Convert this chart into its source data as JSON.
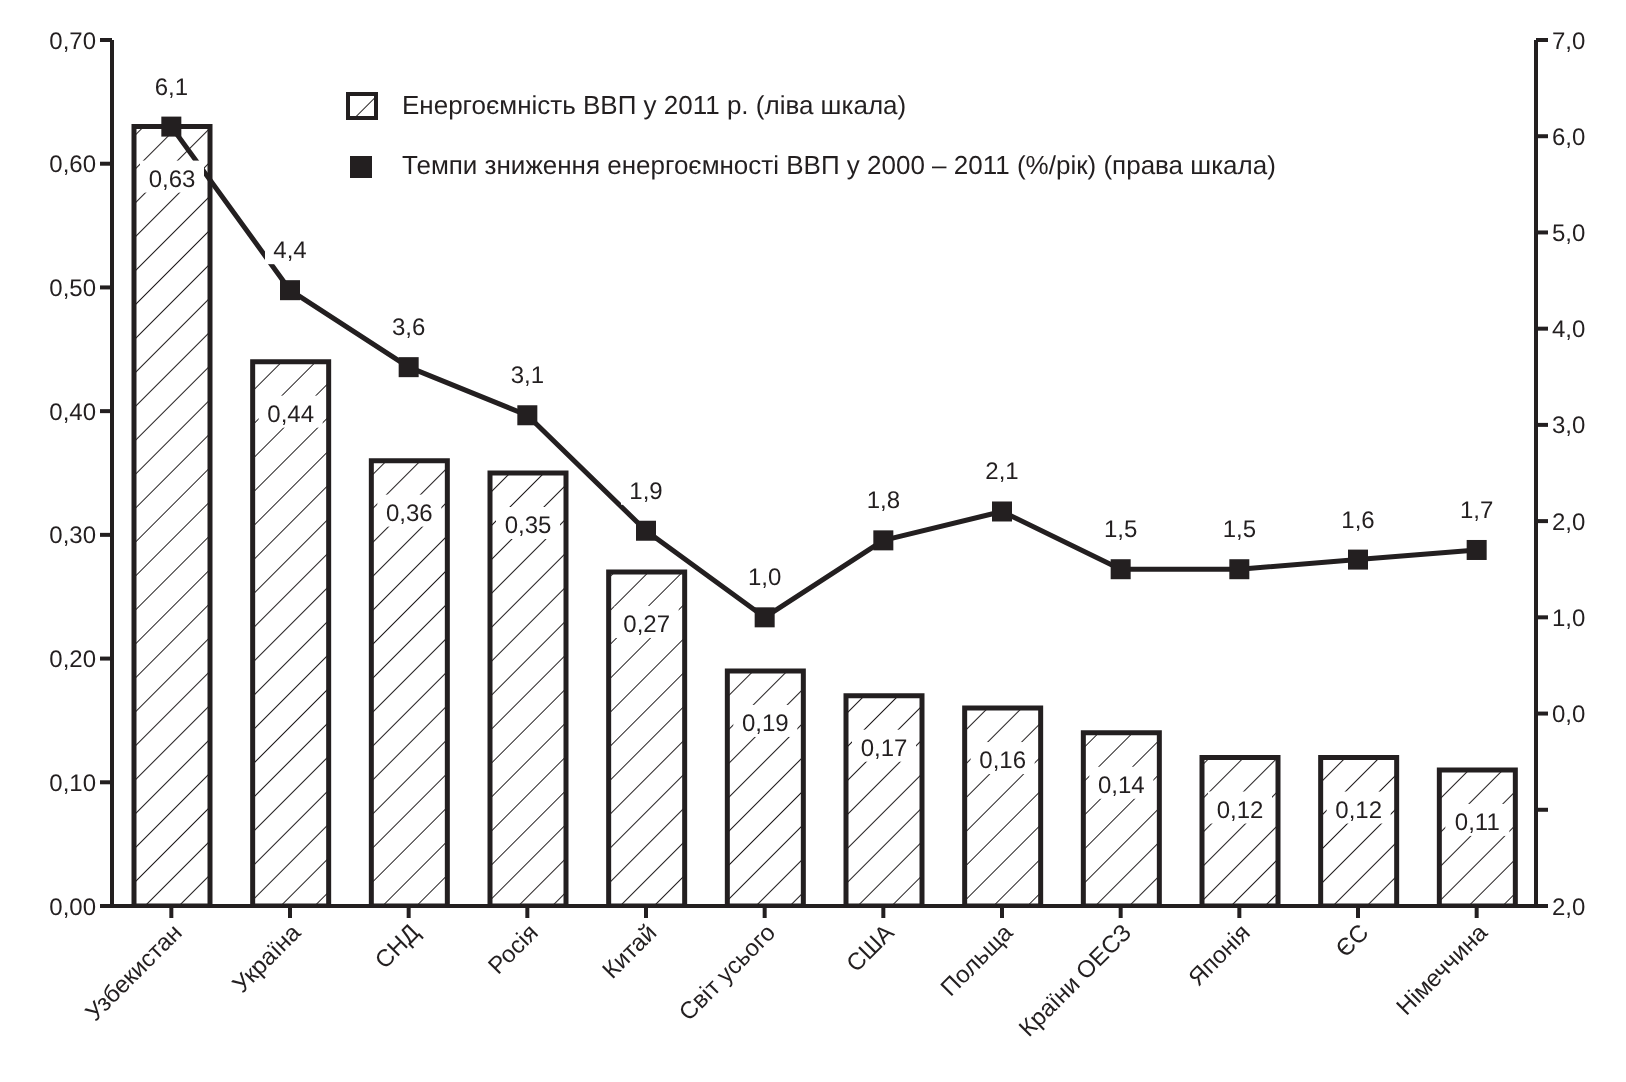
{
  "chart_data": {
    "type": "bar",
    "categories": [
      "Узбекистан",
      "Україна",
      "СНД",
      "Росія",
      "Китай",
      "Світ усього",
      "США",
      "Польща",
      "Країни ОЕСЗ",
      "Японія",
      "ЄС",
      "Німеччина"
    ],
    "series": [
      {
        "name": "Енергоємність ВВП у 2011 р. (ліва шкала)",
        "color": "#231f20",
        "values": [
          0.63,
          0.44,
          0.36,
          0.35,
          0.27,
          0.19,
          0.17,
          0.16,
          0.14,
          0.12,
          0.12,
          0.11
        ],
        "value_labels": [
          "0,63",
          "0,44",
          "0,36",
          "0,35",
          "0,27",
          "0,19",
          "0,17",
          "0,16",
          "0,14",
          "0,12",
          "0,12",
          "0,11"
        ]
      },
      {
        "name": "Темпи зниження енергоємності ВВП у 2000 – 2011 (%/рік) (права шкала)",
        "type": "line",
        "axis": "y2",
        "color": "#231f20",
        "marker": "square",
        "values": [
          6.1,
          4.4,
          3.6,
          3.1,
          1.9,
          1.0,
          1.8,
          2.1,
          1.5,
          1.5,
          1.6,
          1.7
        ],
        "value_labels": [
          "6,1",
          "4,4",
          "3,6",
          "3,1",
          "1,9",
          "1,0",
          "1,8",
          "2,1",
          "1,5",
          "1,5",
          "1,6",
          "1,7"
        ]
      }
    ],
    "ylim": [
      0,
      0.7
    ],
    "yticks": [
      {
        "value": 0,
        "label": "0,00"
      },
      {
        "value": 0.1,
        "label": "0,10"
      },
      {
        "value": 0.2,
        "label": "0,20"
      },
      {
        "value": 0.3,
        "label": "0,30"
      },
      {
        "value": 0.4,
        "label": "0,40"
      },
      {
        "value": 0.5,
        "label": "0,50"
      },
      {
        "value": 0.6,
        "label": "0,60"
      },
      {
        "value": 0.7,
        "label": "0,70"
      }
    ],
    "y2lim": [
      -2,
      7
    ],
    "y2ticks": [
      {
        "value": -2,
        "label": "2,0"
      },
      {
        "value": -1,
        "label": null
      },
      {
        "value": 0,
        "label": "0,0"
      },
      {
        "value": 1,
        "label": "1,0"
      },
      {
        "value": 2,
        "label": "2,0"
      },
      {
        "value": 3,
        "label": "3,0"
      },
      {
        "value": 4,
        "label": "4,0"
      },
      {
        "value": 5,
        "label": "5,0"
      },
      {
        "value": 6,
        "label": "6,0"
      },
      {
        "value": 7,
        "label": "7,0"
      }
    ],
    "legend": "top right"
  }
}
